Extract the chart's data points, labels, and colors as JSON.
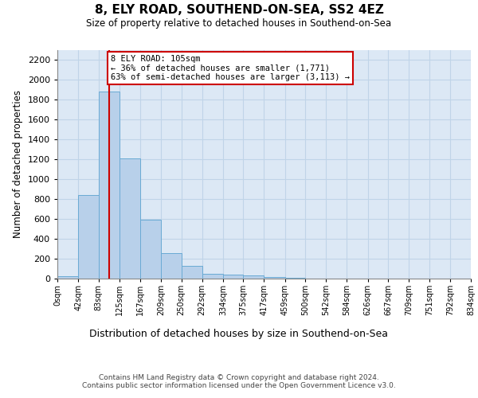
{
  "title_line1": "8, ELY ROAD, SOUTHEND-ON-SEA, SS2 4EZ",
  "title_line2": "Size of property relative to detached houses in Southend-on-Sea",
  "xlabel": "Distribution of detached houses by size in Southend-on-Sea",
  "ylabel": "Number of detached properties",
  "bin_labels": [
    "0sqm",
    "42sqm",
    "83sqm",
    "125sqm",
    "167sqm",
    "209sqm",
    "250sqm",
    "292sqm",
    "334sqm",
    "375sqm",
    "417sqm",
    "459sqm",
    "500sqm",
    "542sqm",
    "584sqm",
    "626sqm",
    "667sqm",
    "709sqm",
    "751sqm",
    "792sqm",
    "834sqm"
  ],
  "bin_edges": [
    0,
    42,
    83,
    125,
    167,
    209,
    250,
    292,
    334,
    375,
    417,
    459,
    500,
    542,
    584,
    626,
    667,
    709,
    751,
    792,
    834
  ],
  "bar_heights": [
    25,
    840,
    1880,
    1210,
    590,
    260,
    125,
    50,
    40,
    35,
    20,
    8,
    0,
    0,
    0,
    0,
    0,
    0,
    0,
    0
  ],
  "bar_color": "#b8d0ea",
  "bar_edge_color": "#6aaad4",
  "grid_color": "#c0d4e8",
  "background_color": "#dce8f5",
  "vline_x": 105,
  "vline_color": "#cc0000",
  "annotation_text": "8 ELY ROAD: 105sqm\n← 36% of detached houses are smaller (1,771)\n63% of semi-detached houses are larger (3,113) →",
  "annotation_box_facecolor": "#ffffff",
  "annotation_border_color": "#cc0000",
  "ylim": [
    0,
    2300
  ],
  "yticks": [
    0,
    200,
    400,
    600,
    800,
    1000,
    1200,
    1400,
    1600,
    1800,
    2000,
    2200
  ],
  "footer_line1": "Contains HM Land Registry data © Crown copyright and database right 2024.",
  "footer_line2": "Contains public sector information licensed under the Open Government Licence v3.0."
}
